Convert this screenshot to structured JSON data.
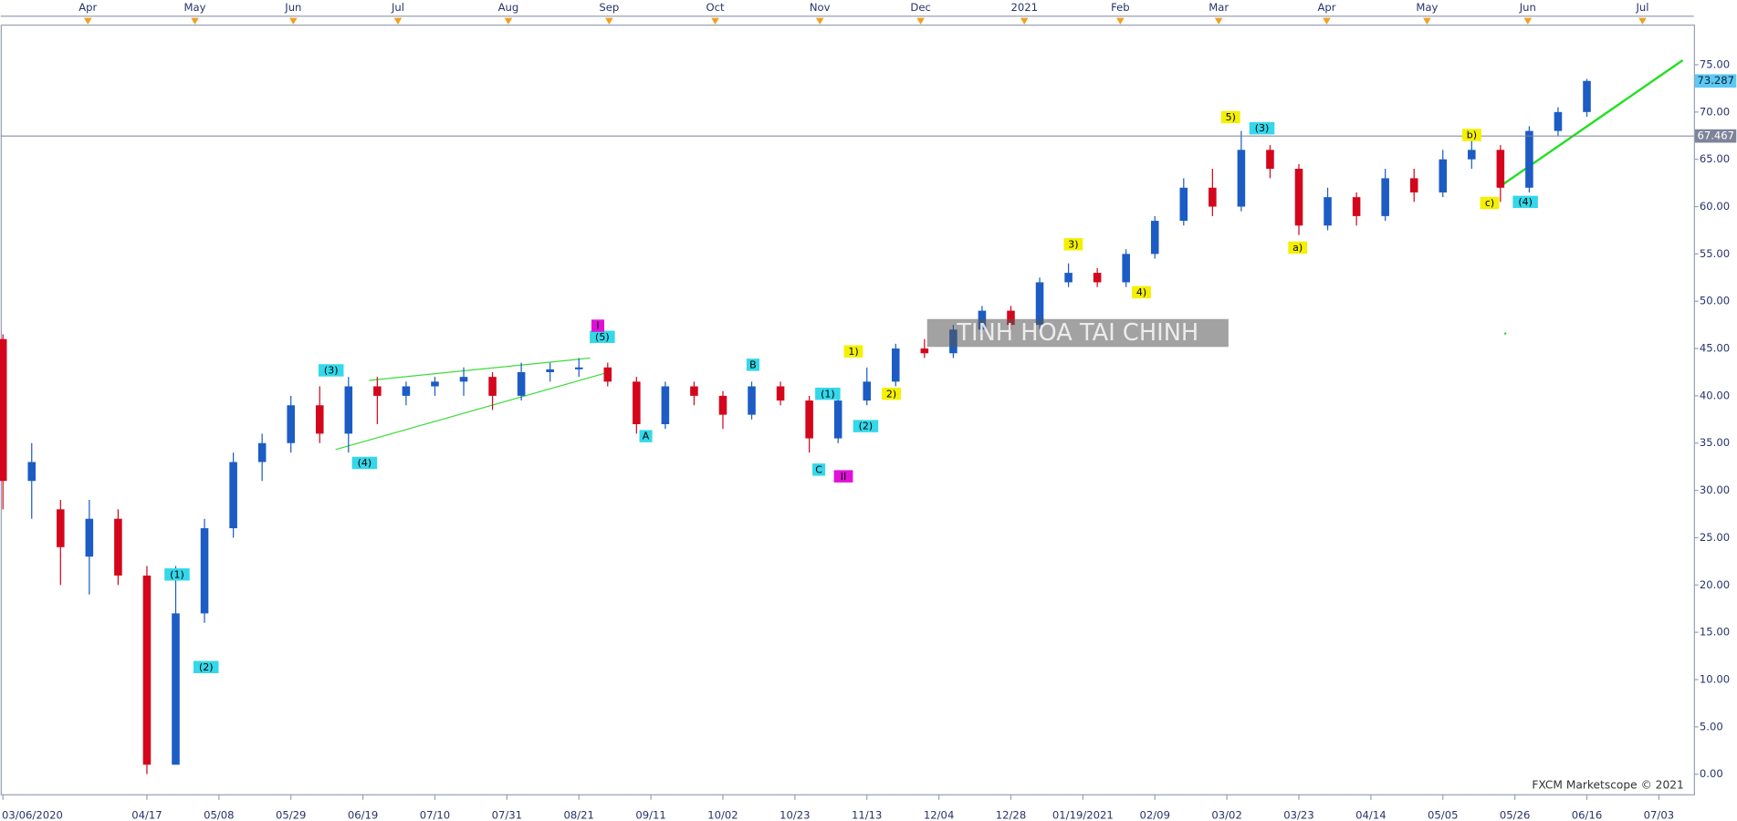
{
  "chart_data": {
    "type": "candlestick",
    "x": [
      0,
      6,
      12,
      18,
      24,
      30,
      36,
      42,
      48,
      54,
      60,
      66,
      72,
      78,
      84,
      90,
      96,
      102,
      108,
      114,
      120,
      126,
      132,
      138,
      144,
      150,
      156,
      162,
      168,
      174,
      180,
      186,
      192,
      198,
      204,
      210,
      216,
      222,
      228,
      234,
      240,
      246,
      252,
      258,
      264,
      270,
      276,
      282,
      288,
      294,
      300,
      306,
      312,
      318,
      324,
      330
    ],
    "open": [
      46,
      31,
      28,
      23,
      27,
      21,
      1,
      17,
      26,
      33,
      35,
      39,
      36,
      41,
      40,
      41,
      41.5,
      42,
      40,
      42.5,
      42.8,
      43,
      41.5,
      37,
      41,
      40,
      38,
      41,
      39.5,
      35.5,
      39.5,
      41.5,
      45,
      44.5,
      47,
      49,
      47.5,
      52,
      53,
      52,
      55,
      58.5,
      62,
      60,
      66,
      64,
      58,
      61,
      59,
      63,
      61.5,
      65,
      66,
      62,
      68,
      70
    ],
    "high": [
      46.5,
      35,
      29,
      29,
      28,
      22,
      22,
      27,
      34,
      36,
      40,
      41,
      42,
      42,
      41.5,
      42,
      43,
      42.5,
      43.5,
      43.5,
      44,
      43.5,
      42,
      41.5,
      41.5,
      40.5,
      41.5,
      41.5,
      40,
      40,
      43,
      45.5,
      46,
      47.5,
      49.5,
      49.5,
      52.5,
      54,
      53.5,
      55.5,
      59,
      63,
      64,
      68,
      66.5,
      64.5,
      62,
      61.5,
      64,
      64,
      66,
      67,
      66.5,
      68.5,
      70.5,
      73.5
    ],
    "low": [
      28,
      27,
      20,
      19,
      20,
      0,
      1,
      16,
      25,
      31,
      34,
      35,
      34,
      37,
      39,
      40,
      40,
      38.5,
      39.5,
      41.5,
      42,
      41,
      36,
      36.5,
      39,
      36.5,
      37.5,
      39,
      34,
      35,
      39,
      41,
      44,
      44,
      46.5,
      47,
      47,
      51.5,
      51.5,
      51.5,
      54.5,
      58,
      59,
      59.5,
      63,
      57,
      57.5,
      58,
      58.5,
      60.5,
      61,
      64,
      60.5,
      61.5,
      67.5,
      69.5
    ],
    "close": [
      31,
      33,
      24,
      27,
      21,
      1,
      17,
      26,
      33,
      35,
      39,
      36,
      41,
      40,
      41,
      41.5,
      42,
      40,
      42.5,
      42.8,
      43,
      41.5,
      37,
      41,
      40,
      38,
      41,
      39.5,
      35.5,
      39.5,
      41.5,
      45,
      44.5,
      47,
      49,
      47.5,
      52,
      53,
      52,
      55,
      58.5,
      62,
      60,
      66,
      64,
      58,
      61,
      59,
      63,
      61.5,
      65,
      66,
      62,
      68,
      70,
      73.287
    ],
    "up_color": "#1c5cc4",
    "down_color": "#d4061c",
    "xlim": [
      -0.465,
      352.3
    ],
    "ylim": [
      -2.12,
      79.25
    ],
    "yticks": [
      {
        "value": 0,
        "label": "0.00"
      },
      {
        "value": 5,
        "label": "5.00"
      },
      {
        "value": 10,
        "label": "10.00"
      },
      {
        "value": 15,
        "label": "15.00"
      },
      {
        "value": 20,
        "label": "20.00"
      },
      {
        "value": 25,
        "label": "25.00"
      },
      {
        "value": 30,
        "label": "30.00"
      },
      {
        "value": 35,
        "label": "35.00"
      },
      {
        "value": 40,
        "label": "40.00"
      },
      {
        "value": 45,
        "label": "45.00"
      },
      {
        "value": 50,
        "label": "50.00"
      },
      {
        "value": 55,
        "label": "55.00"
      },
      {
        "value": 60,
        "label": "60.00"
      },
      {
        "value": 65,
        "label": "65.00"
      },
      {
        "value": 70,
        "label": "70.00"
      },
      {
        "value": 75,
        "label": "75.00"
      }
    ],
    "xticks": [
      {
        "value": 0,
        "label": "03/06/2020"
      },
      {
        "value": 30,
        "label": "04/17"
      },
      {
        "value": 45,
        "label": "05/08"
      },
      {
        "value": 60,
        "label": "05/29"
      },
      {
        "value": 75,
        "label": "06/19"
      },
      {
        "value": 90,
        "label": "07/10"
      },
      {
        "value": 105,
        "label": "07/31"
      },
      {
        "value": 120,
        "label": "08/21"
      },
      {
        "value": 135,
        "label": "09/11"
      },
      {
        "value": 150,
        "label": "10/02"
      },
      {
        "value": 165,
        "label": "10/23"
      },
      {
        "value": 180,
        "label": "11/13"
      },
      {
        "value": 195,
        "label": "12/04"
      },
      {
        "value": 210,
        "label": "12/28"
      },
      {
        "value": 225,
        "label": "01/19/2021"
      },
      {
        "value": 240,
        "label": "02/09"
      },
      {
        "value": 255,
        "label": "03/02"
      },
      {
        "value": 270,
        "label": "03/23"
      },
      {
        "value": 285,
        "label": "04/14"
      },
      {
        "value": 300,
        "label": "05/05"
      },
      {
        "value": 315,
        "label": "05/26"
      },
      {
        "value": 330,
        "label": "06/16"
      },
      {
        "value": 345,
        "label": "07/03"
      }
    ],
    "xticks_top": [
      {
        "value": 17.7,
        "label": "Apr"
      },
      {
        "value": 40,
        "label": "May"
      },
      {
        "value": 60.5,
        "label": "Jun"
      },
      {
        "value": 82.3,
        "label": "Jul"
      },
      {
        "value": 105.3,
        "label": "Aug"
      },
      {
        "value": 126.3,
        "label": "Sep"
      },
      {
        "value": 148.4,
        "label": "Oct"
      },
      {
        "value": 170.2,
        "label": "Nov"
      },
      {
        "value": 191.2,
        "label": "Dec"
      },
      {
        "value": 212.8,
        "label": "2021"
      },
      {
        "value": 232.8,
        "label": "Feb"
      },
      {
        "value": 253.3,
        "label": "Mar"
      },
      {
        "value": 275.8,
        "label": "Apr"
      },
      {
        "value": 296.7,
        "label": "May"
      },
      {
        "value": 317.7,
        "label": "Jun"
      },
      {
        "value": 341.6,
        "label": "Jul"
      }
    ],
    "last_price": 73.287,
    "reference_line": 67.467,
    "annotations": [
      {
        "text": "(1)",
        "color": "#33d8ea"
      },
      {
        "text": "(2)",
        "color": "#33d8ea"
      },
      {
        "text": "(3)",
        "color": "#33d8ea"
      },
      {
        "text": "(4)",
        "color": "#33d8ea"
      },
      {
        "text": "(5)",
        "color": "#33d8ea"
      },
      {
        "text": "I",
        "color": "#e010d8"
      },
      {
        "text": "A",
        "color": "#33d8ea"
      },
      {
        "text": "B",
        "color": "#33d8ea"
      },
      {
        "text": "C",
        "color": "#33d8ea"
      },
      {
        "text": "II",
        "color": "#e010d8"
      },
      {
        "text": "(1)",
        "color": "#33d8ea"
      },
      {
        "text": "(2)",
        "color": "#33d8ea"
      },
      {
        "text": "1)",
        "color": "#f4f000"
      },
      {
        "text": "2)",
        "color": "#f4f000"
      },
      {
        "text": "3)",
        "color": "#f4f000"
      },
      {
        "text": "4)",
        "color": "#f4f000"
      },
      {
        "text": "5)",
        "color": "#f4f000"
      },
      {
        "text": "(3)",
        "color": "#33d8ea"
      },
      {
        "text": "a)",
        "color": "#f4f000"
      },
      {
        "text": "b)",
        "color": "#f4f000"
      },
      {
        "text": "c)",
        "color": "#f4f000"
      },
      {
        "text": "(4)",
        "color": "#33d8ea"
      }
    ],
    "watermark": "TINH HOA TAI CHINH",
    "copyright": "FXCM Marketscope © 2021"
  }
}
